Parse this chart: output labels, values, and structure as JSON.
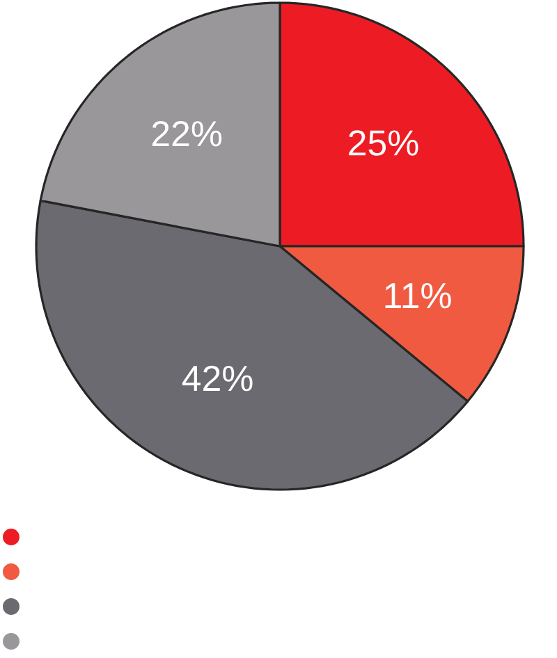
{
  "chart_data": {
    "type": "pie",
    "categories": [
      null,
      null,
      null,
      null
    ],
    "values": [
      25,
      11,
      42,
      22
    ],
    "value_labels": [
      "25%",
      "11%",
      "42%",
      "22%"
    ],
    "colors": [
      "#ed1c24",
      "#f05a40",
      "#6b6a70",
      "#9a979b"
    ]
  }
}
